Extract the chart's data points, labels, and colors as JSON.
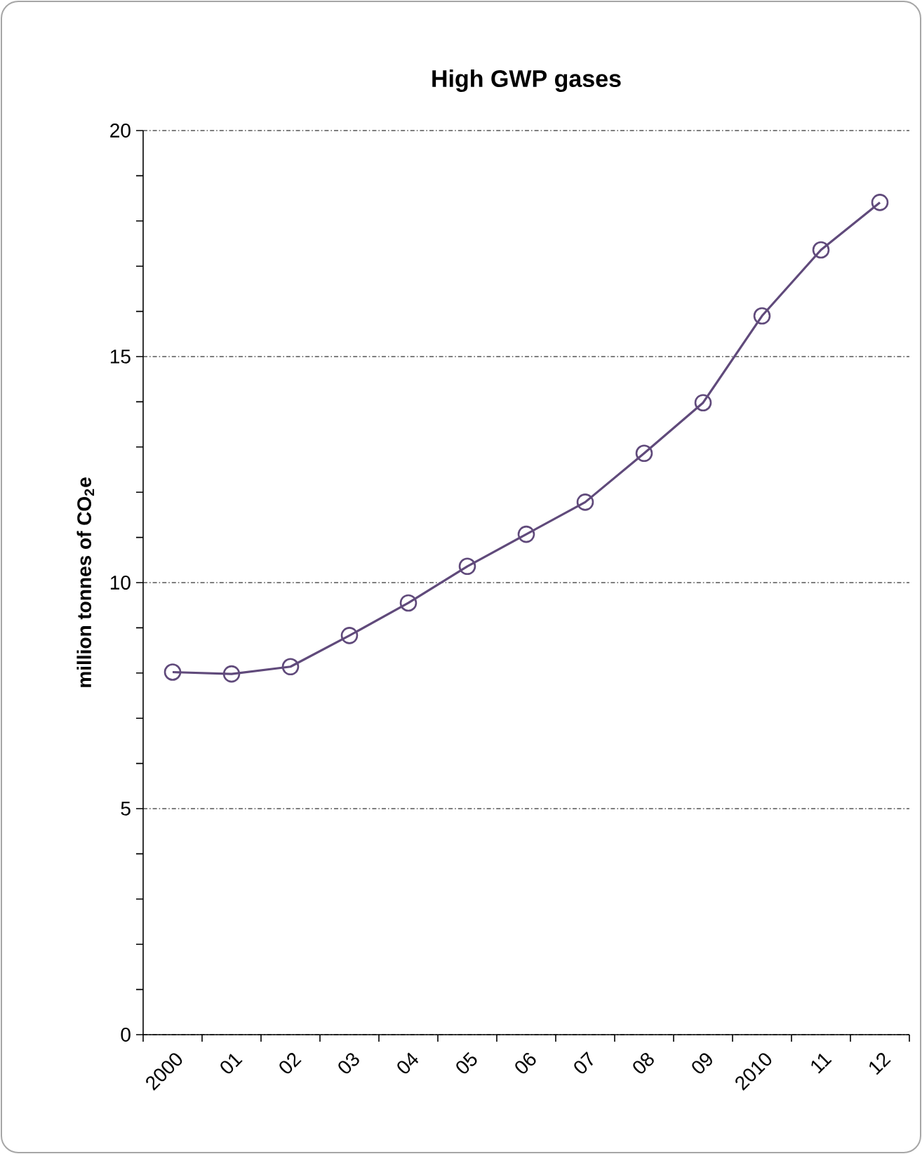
{
  "chart_data": {
    "type": "line",
    "title": "High GWP gases",
    "ylabel": "million tonnes of CO$_{2}$e",
    "categories": [
      "2000",
      "01",
      "02",
      "03",
      "04",
      "05",
      "06",
      "07",
      "08",
      "09",
      "2010",
      "11",
      "12"
    ],
    "series": [
      {
        "color": "#604a7b",
        "values": [
          8.02,
          7.98,
          8.14,
          8.83,
          9.55,
          10.36,
          11.07,
          11.78,
          12.86,
          13.98,
          15.9,
          17.36,
          18.41
        ]
      }
    ],
    "ylim": [
      0,
      20
    ],
    "yticks": [
      0,
      5,
      10,
      15,
      20
    ],
    "grid": "y",
    "marker": "circle",
    "line_style": "solid"
  }
}
